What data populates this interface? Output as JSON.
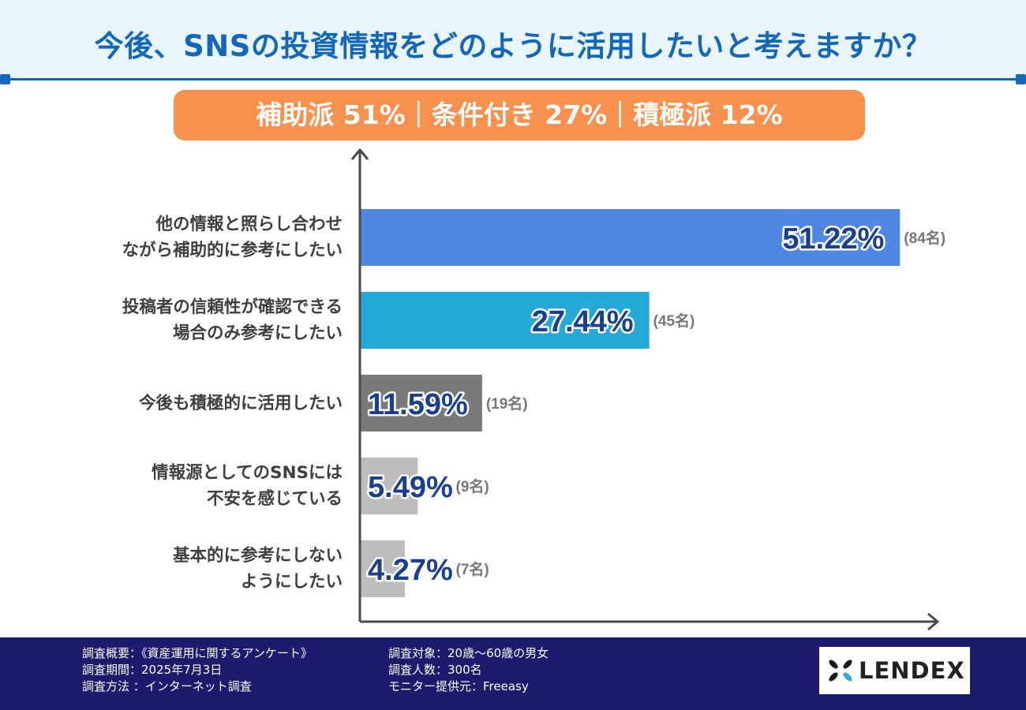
{
  "title": "今後、SNSの投資情報をどのように活用したいと考えますか？",
  "banner": "補助派 51%｜条件付き 27%｜積極派 12%",
  "colors": {
    "title": "#1466b8",
    "banner": "#f7914d",
    "bar1": "#4f87e2",
    "bar2": "#24a9d9",
    "bar3": "#7a7a7a",
    "bar4": "#bdbdbd",
    "bar5": "#bdbdbd",
    "value_text": "#1a3f8c",
    "footer": "#1c1b6e"
  },
  "chart_data": {
    "type": "bar",
    "orientation": "horizontal",
    "title": "今後、SNSの投資情報をどのように活用したいと考えますか？",
    "categories": [
      [
        "他の情報と照らし合わせ",
        "ながら補助的に参考にしたい"
      ],
      [
        "投稿者の信頼性が確認できる",
        "場合のみ参考にしたい"
      ],
      [
        "今後も積極的に活用したい"
      ],
      [
        "情報源としてのSNSには",
        "不安を感じている"
      ],
      [
        "基本的に参考にしない",
        "ようにしたい"
      ]
    ],
    "values": [
      51.22,
      27.44,
      11.59,
      5.49,
      4.27
    ],
    "value_labels": [
      "51.22%",
      "27.44%",
      "11.59%",
      "5.49%",
      "4.27%"
    ],
    "counts": [
      "(84名)",
      "(45名)",
      "(19名)",
      "(9名)",
      "(7名)"
    ],
    "xlim": [
      0,
      100
    ],
    "grid": false,
    "legend": "none"
  },
  "footer": {
    "col1": [
      "調査概要：《資産運用に関するアンケート》",
      "調査期間：2025年7月3日",
      "調査方法 ：インターネット調査"
    ],
    "col2": [
      "調査対象：20歳〜60歳の男女",
      "調査人数：300名",
      "モニター提供元：Freeasy"
    ],
    "logo": "LENDEX",
    "logo_icon": "lendex-pinwheel-icon"
  }
}
